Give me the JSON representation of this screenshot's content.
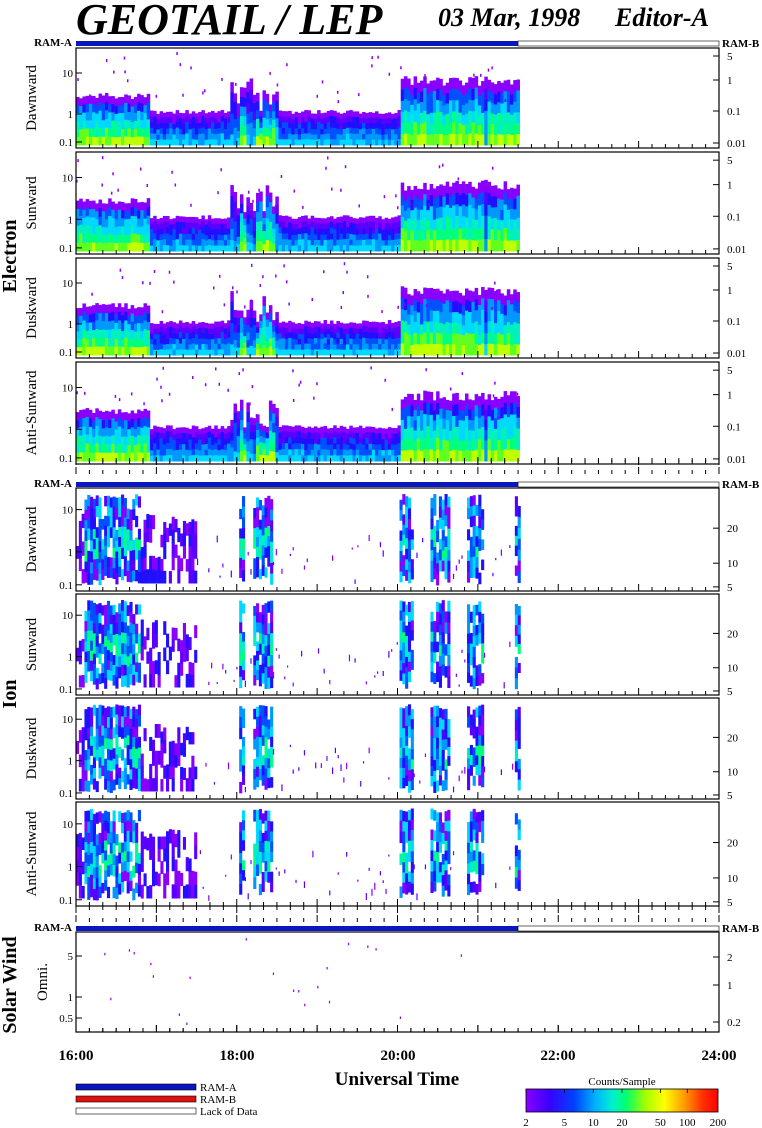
{
  "header": {
    "title": "GEOTAIL / LEP",
    "date": "03 Mar, 1998",
    "editor": "Editor-A"
  },
  "colors": {
    "ram_a": "#0a17c0",
    "ram_b": "#e01010",
    "colorbar": [
      "#8a00ff",
      "#4000ff",
      "#0030ff",
      "#00a0ff",
      "#00e8e0",
      "#00ff80",
      "#a0ff00",
      "#ffff00",
      "#ffa000",
      "#ff3000",
      "#ff0000"
    ]
  },
  "mode_bar": {
    "left_label": "RAM-A",
    "right_label": "RAM-B",
    "ram_a_until_hour": 21.5
  },
  "groups": [
    {
      "name": "Electron",
      "panels": [
        "Dawnward",
        "Sunward",
        "Duskward",
        "Anti-Sunward"
      ]
    },
    {
      "name": "Ion",
      "panels": [
        "Dawnward",
        "Sunward",
        "Duskward",
        "Anti-Sunward"
      ]
    },
    {
      "name": "Solar Wind",
      "panels": [
        "Omni."
      ]
    }
  ],
  "xaxis": {
    "label": "Universal Time",
    "ticks": [
      "16:00",
      "18:00",
      "20:00",
      "22:00",
      "24:00"
    ],
    "range_hours": [
      16,
      24
    ]
  },
  "legend": {
    "items": [
      "RAM-A",
      "RAM-B",
      "Lack of Data"
    ],
    "colorbar_title": "Counts/Sample",
    "colorbar_ticks": [
      "2",
      "5",
      "10",
      "20",
      "50",
      "100",
      "200"
    ]
  },
  "chart_data": [
    {
      "type": "heatmap",
      "group": "Electron",
      "panel": "Dawnward",
      "left_ticks": [
        "10",
        "1",
        "0.1"
      ],
      "right_ticks": [
        "5",
        "1",
        "0.1",
        "0.01"
      ],
      "data_end_hour": 21.5
    },
    {
      "type": "heatmap",
      "group": "Electron",
      "panel": "Sunward",
      "left_ticks": [
        "10",
        "1",
        "0.1"
      ],
      "right_ticks": [
        "5",
        "1",
        "0.1",
        "0.01"
      ],
      "data_end_hour": 21.5
    },
    {
      "type": "heatmap",
      "group": "Electron",
      "panel": "Duskward",
      "left_ticks": [
        "10",
        "1",
        "0.1"
      ],
      "right_ticks": [
        "5",
        "1",
        "0.1",
        "0.01"
      ],
      "data_end_hour": 21.5
    },
    {
      "type": "heatmap",
      "group": "Electron",
      "panel": "Anti-Sunward",
      "left_ticks": [
        "10",
        "1",
        "0.1"
      ],
      "right_ticks": [
        "5",
        "1",
        "0.1",
        "0.01"
      ],
      "data_end_hour": 21.5
    },
    {
      "type": "heatmap",
      "group": "Ion",
      "panel": "Dawnward",
      "left_ticks": [
        "10",
        "1",
        "0.1"
      ],
      "right_ticks": [
        "20",
        "10",
        "5"
      ],
      "data_end_hour": 21.5
    },
    {
      "type": "heatmap",
      "group": "Ion",
      "panel": "Sunward",
      "left_ticks": [
        "10",
        "1",
        "0.1"
      ],
      "right_ticks": [
        "20",
        "10",
        "5"
      ],
      "data_end_hour": 21.5
    },
    {
      "type": "heatmap",
      "group": "Ion",
      "panel": "Duskward",
      "left_ticks": [
        "10",
        "1",
        "0.1"
      ],
      "right_ticks": [
        "20",
        "10",
        "5"
      ],
      "data_end_hour": 21.5
    },
    {
      "type": "heatmap",
      "group": "Ion",
      "panel": "Anti-Sunward",
      "left_ticks": [
        "10",
        "1",
        "0.1"
      ],
      "right_ticks": [
        "20",
        "10",
        "5"
      ],
      "data_end_hour": 21.5
    },
    {
      "type": "heatmap",
      "group": "Solar Wind",
      "panel": "Omni.",
      "left_ticks": [
        "5",
        "1",
        "0.5"
      ],
      "right_ticks": [
        "2",
        "1",
        "0.2"
      ],
      "data_end_hour": 21.5
    }
  ]
}
